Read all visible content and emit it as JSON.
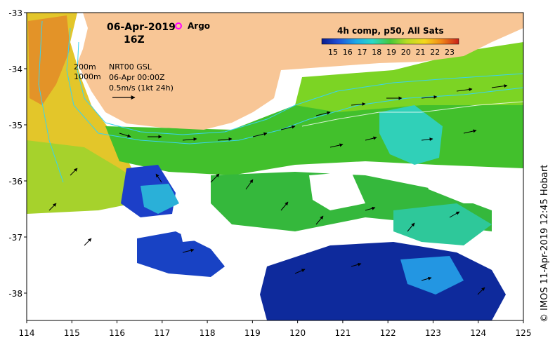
{
  "map": {
    "date": "06-Apr-2019",
    "time": "16Z",
    "argo_label": "Argo",
    "product": "4h comp, p50, All Sats",
    "depth_label_a": "200m",
    "depth_label_b": "1000m",
    "current_source": "NRT00 GSL",
    "current_date": "06-Apr 00:00Z",
    "scale_label": "0.5m/s (1kt 24h)",
    "credit": "© IMOS 11-Apr-2019 12:45 Hobart",
    "colorbar_ticks": [
      "15",
      "16",
      "17",
      "18",
      "19",
      "20",
      "21",
      "22",
      "23"
    ],
    "lon_ticks": [
      "114",
      "115",
      "116",
      "117",
      "118",
      "119",
      "120",
      "121",
      "122",
      "123",
      "124",
      "125"
    ],
    "lat_ticks": [
      "-33",
      "-34",
      "-35",
      "-36",
      "-37",
      "-38"
    ],
    "colors": {
      "land": "#f8c696",
      "argo": "#ff00ff",
      "isobath": "#38d3f0"
    }
  }
}
